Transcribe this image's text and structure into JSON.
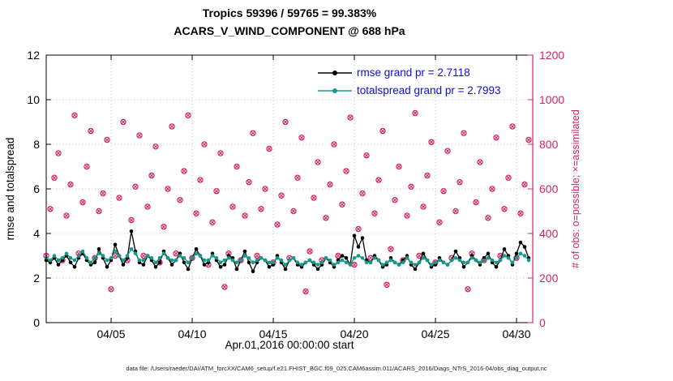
{
  "figure": {
    "title_line1": "Tropics 59396 / 59765 = 99.383%",
    "title_line2": "ACARS_V_WIND_COMPONENT @ 688 hPa",
    "caption": "data file: /Users/raeder/DAI/ATM_forcXX/CAM6_setup/f.e21.FHIST_BGC.f09_025.CAM6assim.011/ACARS_2016/Diags_NTrS_2016-04/obs_diag_output.nc"
  },
  "colors": {
    "accent_crimson": "#d8245e",
    "teal": "#149a8d",
    "black": "#000000",
    "legend_text": "#0b0be6",
    "grid": "#c9c9c9"
  },
  "chart_data": {
    "type": "line",
    "title": "Tropics 59396 / 59765 = 99.383%",
    "subtitle": "ACARS_V_WIND_COMPONENT @ 688 hPa",
    "xlabel": "Apr.01,2016 00:00:00 start",
    "grid": true,
    "legend_position": "top-inside",
    "x": {
      "range": [
        0,
        30
      ],
      "start_day": 0,
      "step_days": 0.25,
      "count": 120
    },
    "xticks": [
      {
        "day": 4,
        "label": "04/05"
      },
      {
        "day": 9,
        "label": "04/10"
      },
      {
        "day": 14,
        "label": "04/15"
      },
      {
        "day": 19,
        "label": "04/20"
      },
      {
        "day": 24,
        "label": "04/25"
      },
      {
        "day": 29,
        "label": "04/30"
      }
    ],
    "left_axis": {
      "label": "rmse and totalspread",
      "min": 0,
      "max": 12,
      "ticks": [
        0,
        2,
        4,
        6,
        8,
        10,
        12
      ]
    },
    "right_axis": {
      "label": "# of obs: o=possible; ×=assimilated",
      "min": 0,
      "max": 1200,
      "ticks": [
        0,
        200,
        400,
        600,
        800,
        1000,
        1200
      ],
      "color": "#d8245e"
    },
    "stats": {
      "region": "Tropics",
      "obs_assimilated": 59396,
      "obs_possible": 59765,
      "percent": "99.383%",
      "rmse_grand_prior": 2.7118,
      "totalspread_grand_prior": 2.7993
    },
    "series": [
      {
        "name": "rmse",
        "legend": "rmse grand pr = 2.7118",
        "color": "#000000",
        "axis": "left",
        "marker": "dot",
        "values": [
          2.8,
          2.7,
          2.9,
          2.6,
          2.8,
          3.0,
          2.7,
          2.5,
          2.9,
          3.1,
          2.8,
          2.6,
          2.7,
          3.3,
          2.9,
          2.5,
          2.8,
          3.5,
          3.0,
          2.6,
          2.9,
          4.1,
          3.2,
          2.7,
          2.6,
          3.0,
          2.8,
          2.5,
          2.7,
          3.2,
          2.9,
          2.6,
          2.8,
          3.1,
          2.7,
          2.4,
          2.9,
          3.3,
          3.0,
          2.6,
          2.7,
          3.1,
          2.8,
          2.5,
          2.6,
          3.0,
          2.9,
          2.4,
          2.8,
          3.2,
          2.7,
          2.3,
          2.7,
          2.9,
          2.8,
          2.5,
          2.6,
          3.0,
          2.7,
          2.4,
          2.8,
          2.9,
          2.6,
          2.5,
          2.7,
          2.8,
          2.6,
          2.4,
          2.6,
          2.9,
          2.7,
          2.5,
          2.8,
          3.0,
          2.9,
          2.6,
          3.9,
          3.4,
          3.8,
          2.8,
          2.7,
          3.0,
          2.8,
          2.5,
          2.6,
          2.9,
          2.7,
          2.6,
          2.8,
          3.0,
          2.6,
          2.4,
          2.7,
          3.1,
          2.8,
          2.5,
          2.6,
          2.9,
          2.7,
          2.6,
          2.8,
          3.2,
          2.9,
          2.5,
          2.7,
          3.0,
          2.8,
          2.6,
          2.9,
          3.1,
          2.7,
          2.5,
          2.8,
          3.3,
          3.0,
          2.6,
          3.1,
          3.6,
          3.4,
          2.9
        ]
      },
      {
        "name": "totalspread",
        "legend": "totalspread grand pr = 2.7993",
        "color": "#149a8d",
        "axis": "left",
        "marker": "dot",
        "values": [
          2.9,
          2.8,
          3.0,
          2.8,
          2.9,
          3.1,
          2.9,
          2.8,
          3.0,
          3.2,
          2.9,
          2.7,
          2.9,
          3.1,
          3.0,
          2.8,
          2.9,
          3.2,
          3.0,
          2.8,
          3.0,
          3.3,
          3.1,
          2.8,
          2.8,
          3.0,
          2.9,
          2.7,
          2.9,
          3.1,
          2.9,
          2.8,
          2.8,
          3.0,
          2.9,
          2.7,
          2.9,
          3.1,
          3.0,
          2.8,
          2.8,
          3.0,
          2.9,
          2.7,
          2.8,
          2.9,
          2.8,
          2.7,
          2.8,
          3.0,
          2.9,
          2.7,
          2.8,
          2.9,
          2.8,
          2.7,
          2.7,
          2.9,
          2.8,
          2.6,
          2.8,
          2.9,
          2.7,
          2.6,
          2.7,
          2.8,
          2.7,
          2.6,
          2.7,
          2.9,
          2.8,
          2.6,
          2.7,
          2.8,
          2.7,
          2.6,
          2.9,
          3.0,
          2.9,
          2.7,
          2.7,
          2.9,
          2.8,
          2.6,
          2.7,
          2.8,
          2.7,
          2.6,
          2.7,
          2.9,
          2.7,
          2.6,
          2.7,
          2.9,
          2.8,
          2.6,
          2.7,
          2.8,
          2.7,
          2.6,
          2.8,
          2.9,
          2.8,
          2.7,
          2.7,
          2.9,
          2.8,
          2.7,
          2.8,
          2.9,
          2.8,
          2.7,
          2.8,
          3.0,
          2.9,
          2.7,
          2.9,
          3.1,
          3.0,
          2.8
        ]
      },
      {
        "name": "possible",
        "legend": null,
        "color": "#d8245e",
        "axis": "right",
        "marker": "o",
        "values": [
          300,
          510,
          650,
          760,
          280,
          480,
          620,
          930,
          310,
          540,
          700,
          860,
          290,
          500,
          580,
          820,
          150,
          300,
          560,
          900,
          280,
          460,
          610,
          840,
          300,
          520,
          660,
          790,
          270,
          430,
          600,
          880,
          310,
          550,
          680,
          930,
          290,
          490,
          640,
          800,
          260,
          450,
          590,
          760,
          160,
          310,
          520,
          700,
          280,
          480,
          630,
          850,
          300,
          510,
          600,
          780,
          270,
          440,
          570,
          900,
          290,
          500,
          650,
          830,
          140,
          320,
          560,
          720,
          280,
          470,
          620,
          800,
          300,
          530,
          680,
          920,
          260,
          420,
          580,
          750,
          290,
          490,
          640,
          860,
          170,
          330,
          550,
          700,
          280,
          480,
          610,
          940,
          300,
          520,
          660,
          810,
          270,
          450,
          590,
          770,
          290,
          500,
          630,
          850,
          150,
          310,
          540,
          720,
          280,
          470,
          600,
          830,
          300,
          510,
          650,
          880,
          290,
          490,
          620,
          820
        ]
      },
      {
        "name": "assimilated",
        "legend": null,
        "color": "#d8245e",
        "axis": "right",
        "marker": "x",
        "values": [
          300,
          510,
          650,
          760,
          280,
          480,
          620,
          930,
          310,
          540,
          700,
          860,
          290,
          500,
          580,
          820,
          150,
          300,
          560,
          900,
          280,
          460,
          610,
          840,
          300,
          520,
          660,
          790,
          270,
          430,
          600,
          880,
          310,
          550,
          680,
          930,
          290,
          490,
          640,
          800,
          260,
          450,
          590,
          760,
          160,
          310,
          520,
          700,
          280,
          480,
          630,
          850,
          300,
          510,
          600,
          780,
          270,
          440,
          570,
          900,
          290,
          500,
          650,
          830,
          140,
          320,
          560,
          720,
          280,
          470,
          620,
          800,
          300,
          530,
          680,
          920,
          260,
          420,
          580,
          750,
          290,
          490,
          640,
          860,
          170,
          330,
          550,
          700,
          280,
          480,
          610,
          940,
          300,
          520,
          660,
          810,
          270,
          450,
          590,
          770,
          290,
          500,
          630,
          850,
          150,
          310,
          540,
          720,
          280,
          470,
          600,
          830,
          300,
          510,
          650,
          880,
          290,
          490,
          620,
          820
        ]
      }
    ]
  }
}
